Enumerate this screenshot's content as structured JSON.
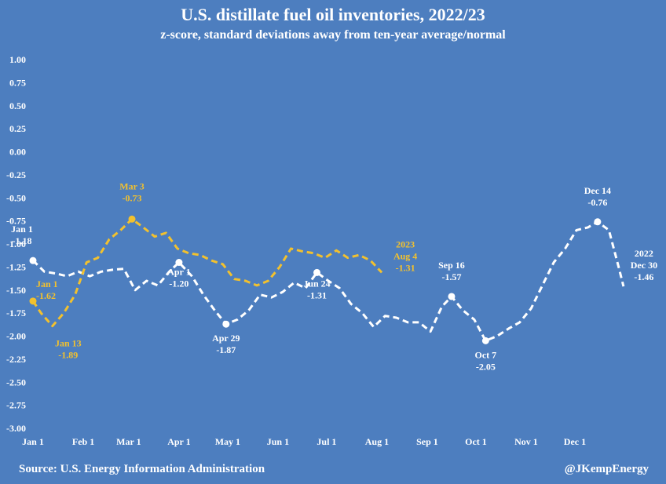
{
  "chart_data": {
    "type": "line",
    "title": "U.S. distillate fuel oil inventories, 2022/23",
    "subtitle": "z-score, standard deviations away from ten-year average/normal",
    "source": "Source: U.S. Energy Information Administration",
    "credit": "@JKempEnergy",
    "ylim": [
      -3.0,
      1.0
    ],
    "yticks": [
      "1.00",
      "0.75",
      "0.50",
      "0.25",
      "0.00",
      "-0.25",
      "-0.50",
      "-0.75",
      "-1.00",
      "-1.25",
      "-1.50",
      "-1.75",
      "-2.00",
      "-2.25",
      "-2.50",
      "-2.75",
      "-3.00"
    ],
    "xlim_days": [
      0,
      365
    ],
    "xticks": [
      {
        "label": "Jan 1",
        "day": 0
      },
      {
        "label": "Feb 1",
        "day": 31
      },
      {
        "label": "Mar 1",
        "day": 59
      },
      {
        "label": "Apr 1",
        "day": 90
      },
      {
        "label": "May 1",
        "day": 120
      },
      {
        "label": "Jun 1",
        "day": 151
      },
      {
        "label": "Jul 1",
        "day": 181
      },
      {
        "label": "Aug 1",
        "day": 212
      },
      {
        "label": "Sep 1",
        "day": 243
      },
      {
        "label": "Oct 1",
        "day": 273
      },
      {
        "label": "Nov 1",
        "day": 304
      },
      {
        "label": "Dec 1",
        "day": 334
      }
    ],
    "series": [
      {
        "name": "2022",
        "color": "#ffffff",
        "dashed": true,
        "points": [
          [
            0,
            -1.18
          ],
          [
            7,
            -1.3
          ],
          [
            14,
            -1.32
          ],
          [
            21,
            -1.35
          ],
          [
            28,
            -1.3
          ],
          [
            35,
            -1.35
          ],
          [
            42,
            -1.3
          ],
          [
            49,
            -1.28
          ],
          [
            56,
            -1.27
          ],
          [
            63,
            -1.5
          ],
          [
            70,
            -1.4
          ],
          [
            77,
            -1.45
          ],
          [
            84,
            -1.3
          ],
          [
            90,
            -1.2
          ],
          [
            98,
            -1.35
          ],
          [
            105,
            -1.55
          ],
          [
            112,
            -1.72
          ],
          [
            119,
            -1.87
          ],
          [
            126,
            -1.82
          ],
          [
            133,
            -1.72
          ],
          [
            140,
            -1.55
          ],
          [
            147,
            -1.58
          ],
          [
            154,
            -1.52
          ],
          [
            161,
            -1.42
          ],
          [
            168,
            -1.48
          ],
          [
            175,
            -1.31
          ],
          [
            182,
            -1.4
          ],
          [
            189,
            -1.48
          ],
          [
            196,
            -1.65
          ],
          [
            203,
            -1.75
          ],
          [
            210,
            -1.9
          ],
          [
            217,
            -1.78
          ],
          [
            224,
            -1.8
          ],
          [
            231,
            -1.85
          ],
          [
            238,
            -1.85
          ],
          [
            245,
            -1.95
          ],
          [
            252,
            -1.68
          ],
          [
            258,
            -1.57
          ],
          [
            265,
            -1.72
          ],
          [
            272,
            -1.82
          ],
          [
            279,
            -2.05
          ],
          [
            286,
            -2.0
          ],
          [
            293,
            -1.92
          ],
          [
            300,
            -1.85
          ],
          [
            307,
            -1.7
          ],
          [
            314,
            -1.45
          ],
          [
            321,
            -1.2
          ],
          [
            328,
            -1.05
          ],
          [
            335,
            -0.85
          ],
          [
            342,
            -0.82
          ],
          [
            348,
            -0.76
          ],
          [
            355,
            -0.85
          ],
          [
            361,
            -1.25
          ],
          [
            364,
            -1.46
          ]
        ]
      },
      {
        "name": "2023",
        "color": "#f2c12e",
        "dashed": true,
        "points": [
          [
            0,
            -1.62
          ],
          [
            5,
            -1.75
          ],
          [
            12,
            -1.89
          ],
          [
            19,
            -1.75
          ],
          [
            26,
            -1.55
          ],
          [
            33,
            -1.2
          ],
          [
            40,
            -1.15
          ],
          [
            47,
            -0.95
          ],
          [
            54,
            -0.85
          ],
          [
            61,
            -0.73
          ],
          [
            68,
            -0.82
          ],
          [
            75,
            -0.92
          ],
          [
            82,
            -0.88
          ],
          [
            89,
            -1.05
          ],
          [
            96,
            -1.1
          ],
          [
            103,
            -1.12
          ],
          [
            110,
            -1.18
          ],
          [
            117,
            -1.22
          ],
          [
            124,
            -1.38
          ],
          [
            131,
            -1.4
          ],
          [
            138,
            -1.45
          ],
          [
            145,
            -1.4
          ],
          [
            152,
            -1.25
          ],
          [
            159,
            -1.05
          ],
          [
            166,
            -1.08
          ],
          [
            173,
            -1.1
          ],
          [
            180,
            -1.15
          ],
          [
            187,
            -1.07
          ],
          [
            194,
            -1.15
          ],
          [
            201,
            -1.12
          ],
          [
            208,
            -1.18
          ],
          [
            215,
            -1.31
          ]
        ]
      }
    ],
    "annotations": [
      {
        "series": "2022",
        "day": 0,
        "value": -1.18,
        "marker": true,
        "label": "Jan 1",
        "value_text": "-1.18"
      },
      {
        "series": "2022",
        "day": 90,
        "value": -1.2,
        "marker": true,
        "label": "Apr 1",
        "value_text": "-1.20"
      },
      {
        "series": "2022",
        "day": 119,
        "value": -1.87,
        "marker": true,
        "label": "Apr 29",
        "value_text": "-1.87"
      },
      {
        "series": "2022",
        "day": 175,
        "value": -1.31,
        "marker": true,
        "label": "Jun 24",
        "value_text": "-1.31"
      },
      {
        "series": "2022",
        "day": 258,
        "value": -1.57,
        "marker": true,
        "label": "Sep 16",
        "value_text": "-1.57"
      },
      {
        "series": "2022",
        "day": 279,
        "value": -2.05,
        "marker": true,
        "label": "Oct 7",
        "value_text": "-2.05"
      },
      {
        "series": "2022",
        "day": 348,
        "value": -0.76,
        "marker": true,
        "label": "Dec 14",
        "value_text": "-0.76"
      },
      {
        "series": "2022",
        "day": 364,
        "value": -1.46,
        "marker": false,
        "label": "2022",
        "label2": "Dec 30",
        "value_text": "-1.46"
      },
      {
        "series": "2023",
        "day": 0,
        "value": -1.62,
        "marker": true,
        "label": "Jan 1",
        "value_text": "-1.62"
      },
      {
        "series": "2023",
        "day": 12,
        "value": -1.89,
        "marker": false,
        "label": "Jan 13",
        "value_text": "-1.89"
      },
      {
        "series": "2023",
        "day": 61,
        "value": -0.73,
        "marker": true,
        "label": "Mar 3",
        "value_text": "-0.73"
      },
      {
        "series": "2023",
        "day": 215,
        "value": -1.31,
        "marker": false,
        "label": "2023",
        "label2": "Aug 4",
        "value_text": "-1.31"
      }
    ]
  }
}
